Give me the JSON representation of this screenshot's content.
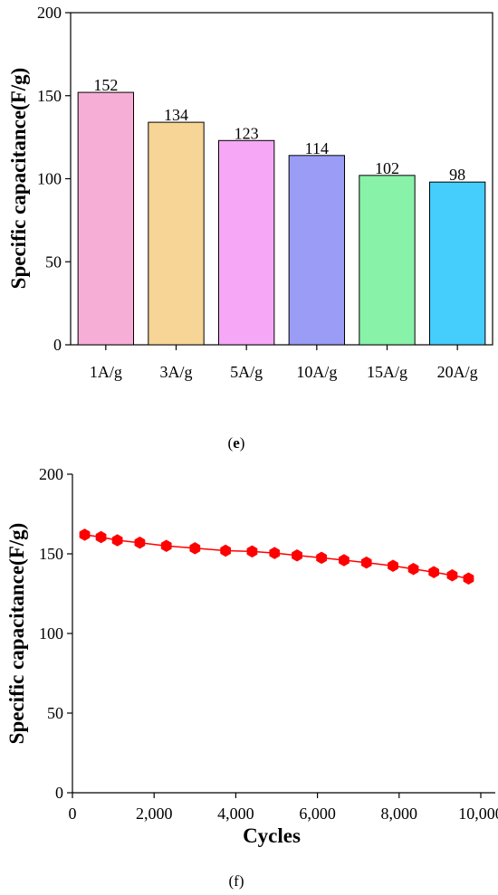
{
  "chart_data": [
    {
      "type": "bar",
      "categories": [
        "1A/g",
        "3A/g",
        "5A/g",
        "10A/g",
        "15A/g",
        "20A/g"
      ],
      "values": [
        152,
        134,
        123,
        114,
        102,
        98
      ],
      "data_labels": [
        "152",
        "134",
        "123",
        "114",
        "102",
        "98"
      ],
      "bar_colors": [
        "#F7AED6",
        "#F7D596",
        "#F6A8F6",
        "#9A9CF5",
        "#88F2A8",
        "#45CDFB"
      ],
      "xlabel": "",
      "ylabel": "Specific capacitance(F/g)",
      "ylim": [
        0,
        200
      ],
      "yticks": [
        "0",
        "50",
        "100",
        "150",
        "200"
      ],
      "grid": false,
      "caption": "(e)"
    },
    {
      "type": "line",
      "x": [
        300,
        700,
        1100,
        1650,
        2300,
        3000,
        3750,
        4400,
        4950,
        5500,
        6100,
        6650,
        7200,
        7850,
        8350,
        8850,
        9300,
        9700
      ],
      "y": [
        162,
        160.5,
        158.5,
        157,
        155,
        153.5,
        152,
        151.5,
        150.5,
        149,
        147.5,
        146,
        144.5,
        142.5,
        140.5,
        138.5,
        136.5,
        134.5
      ],
      "xlabel": "Cycles",
      "ylabel": "Specific capacitance(F/g)",
      "xlim": [
        0,
        10000
      ],
      "ylim": [
        0,
        200
      ],
      "xticks": [
        "0",
        "2,000",
        "4,000",
        "6,000",
        "8,000",
        "10,000"
      ],
      "yticks": [
        "0",
        "50",
        "100",
        "150",
        "200"
      ],
      "series_color": "#FF0000",
      "marker": "hexagon",
      "grid": false,
      "caption": "(f)"
    }
  ]
}
